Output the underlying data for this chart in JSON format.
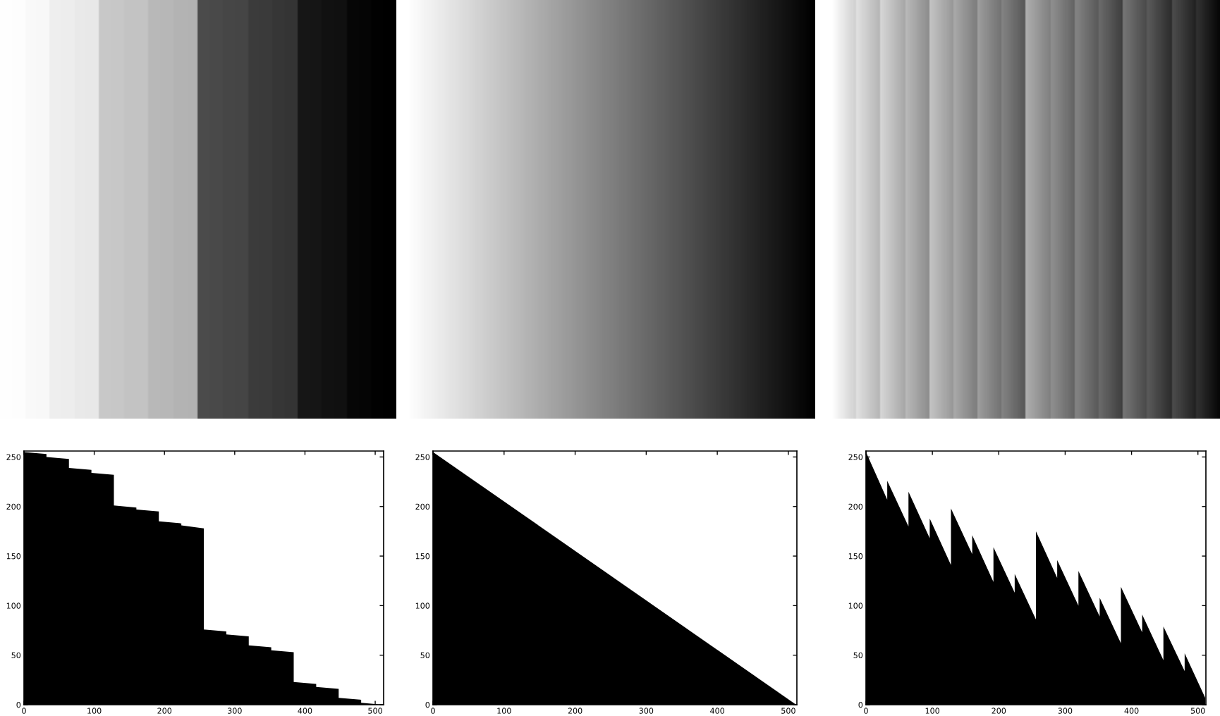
{
  "chart_data": [
    {
      "type": "area",
      "x": [
        0,
        32,
        32,
        64,
        64,
        96,
        96,
        128,
        128,
        160,
        160,
        192,
        192,
        224,
        224,
        256,
        256,
        288,
        288,
        320,
        320,
        352,
        352,
        384,
        384,
        416,
        416,
        448,
        448,
        480,
        480,
        511
      ],
      "values": [
        255,
        253,
        250,
        248,
        239,
        237,
        234,
        232,
        201,
        199,
        197,
        195,
        185,
        183,
        181,
        178,
        76,
        74,
        71,
        69,
        60,
        58,
        55,
        53,
        23,
        21,
        18,
        16,
        7,
        5,
        2,
        0
      ],
      "color": "#000000",
      "xlim": [
        0,
        512
      ],
      "ylim": [
        0,
        256
      ],
      "xticks": [
        0,
        100,
        200,
        300,
        400,
        500
      ],
      "yticks": [
        0,
        50,
        100,
        150,
        200,
        250
      ]
    },
    {
      "type": "area",
      "x": [
        0,
        511
      ],
      "values": [
        255,
        0
      ],
      "color": "#000000",
      "xlim": [
        0,
        512
      ],
      "ylim": [
        0,
        256
      ],
      "xticks": [
        0,
        100,
        200,
        300,
        400,
        500
      ],
      "yticks": [
        0,
        50,
        100,
        150,
        200,
        250
      ]
    },
    {
      "type": "area",
      "x": [
        0,
        32,
        32,
        64,
        64,
        96,
        96,
        128,
        128,
        160,
        160,
        192,
        192,
        224,
        224,
        256,
        256,
        288,
        288,
        320,
        320,
        352,
        352,
        384,
        384,
        416,
        416,
        448,
        448,
        480,
        480,
        511
      ],
      "values": [
        255,
        207,
        226,
        180,
        215,
        168,
        188,
        141,
        198,
        152,
        171,
        124,
        159,
        113,
        132,
        86,
        175,
        128,
        146,
        100,
        135,
        89,
        108,
        62,
        119,
        73,
        91,
        45,
        79,
        34,
        52,
        7
      ],
      "color": "#000000",
      "xlim": [
        0,
        512
      ],
      "ylim": [
        0,
        256
      ],
      "xticks": [
        0,
        100,
        200,
        300,
        400,
        500
      ],
      "yticks": [
        0,
        50,
        100,
        150,
        200,
        250
      ]
    }
  ]
}
